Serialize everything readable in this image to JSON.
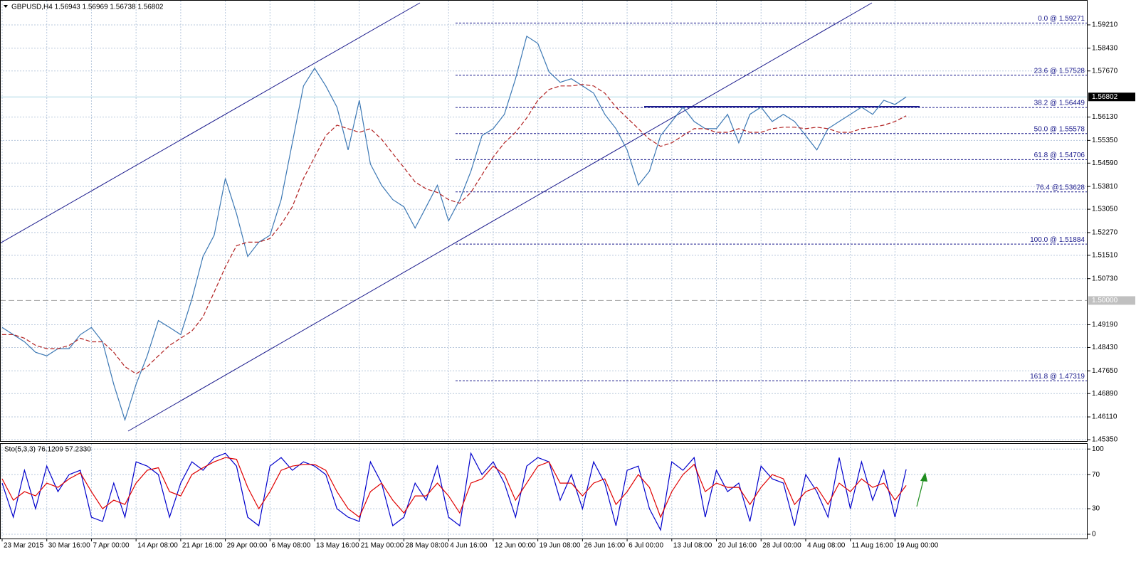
{
  "chart_data": [
    {
      "type": "line",
      "title": "GBPUSD,H4  1.56943 1.56969 1.56738 1.56802",
      "ylim": [
        1.45303,
        1.60017
      ],
      "grid": true,
      "yticks": [
        {
          "value": 1.5921,
          "label": "1.59210"
        },
        {
          "value": 1.5843,
          "label": "1.58430"
        },
        {
          "value": 1.5767,
          "label": "1.57670"
        },
        {
          "value": 1.5613,
          "label": "1.56130"
        },
        {
          "value": 1.5535,
          "label": "1.55350"
        },
        {
          "value": 1.5459,
          "label": "1.54590"
        },
        {
          "value": 1.5381,
          "label": "1.53810"
        },
        {
          "value": 1.5305,
          "label": "1.53050"
        },
        {
          "value": 1.5227,
          "label": "1.52270"
        },
        {
          "value": 1.5151,
          "label": "1.51510"
        },
        {
          "value": 1.5073,
          "label": "1.50730"
        },
        {
          "value": 1.4919,
          "label": "1.49190"
        },
        {
          "value": 1.4843,
          "label": "1.48430"
        },
        {
          "value": 1.4765,
          "label": "1.47650"
        },
        {
          "value": 1.4689,
          "label": "1.46890"
        },
        {
          "value": 1.4611,
          "label": "1.46110"
        },
        {
          "value": 1.4535,
          "label": "1.45350"
        }
      ],
      "level_line": {
        "value": 1.5,
        "label": "1.50000"
      },
      "last_price": {
        "value": 1.56802,
        "label": "1.56802"
      },
      "fib_color": "#1a1a8c",
      "fib_levels": [
        {
          "value": 1.59271,
          "label": "0.0 @ 1.59271"
        },
        {
          "value": 1.57528,
          "label": "23.6 @ 1.57528"
        },
        {
          "value": 1.56449,
          "label": "38.2 @ 1.56449"
        },
        {
          "value": 1.55578,
          "label": "50.0 @ 1.55578"
        },
        {
          "value": 1.54706,
          "label": "61.8 @ 1.54706"
        },
        {
          "value": 1.53628,
          "label": "76.4 @1.53628"
        },
        {
          "value": 1.51884,
          "label": "100.0 @ 1.51884"
        },
        {
          "value": 1.47319,
          "label": "161.8 @ 1.47319"
        }
      ],
      "series": [
        {
          "color": "#3c78b4",
          "dashed": false,
          "values": [
            1.491,
            1.4886,
            1.4862,
            1.4827,
            1.4815,
            1.4839,
            1.4839,
            1.4886,
            1.491,
            1.4862,
            1.472,
            1.4601,
            1.472,
            1.4815,
            1.4933,
            1.491,
            1.4886,
            1.5005,
            1.5147,
            1.5218,
            1.5408,
            1.529,
            1.5147,
            1.5195,
            1.5218,
            1.5337,
            1.5527,
            1.5717,
            1.5776,
            1.5717,
            1.5646,
            1.5503,
            1.5669,
            1.5456,
            1.5385,
            1.5337,
            1.5313,
            1.5242,
            1.5313,
            1.5385,
            1.5266,
            1.5337,
            1.5432,
            1.5551,
            1.5574,
            1.5622,
            1.5741,
            1.5883,
            1.5859,
            1.5764,
            1.5729,
            1.5741,
            1.5717,
            1.5693,
            1.5622,
            1.5574,
            1.5503,
            1.5385,
            1.5432,
            1.5551,
            1.5598,
            1.5646,
            1.5598,
            1.5574,
            1.5574,
            1.5622,
            1.5527,
            1.5622,
            1.5646,
            1.5598,
            1.5622,
            1.5598,
            1.5551,
            1.5503,
            1.5574,
            1.5598,
            1.5622,
            1.5646,
            1.5622,
            1.5669,
            1.5655,
            1.56802
          ]
        },
        {
          "color": "#b22222",
          "dashed": true,
          "values": [
            1.4886,
            1.4886,
            1.4874,
            1.485,
            1.4839,
            1.4839,
            1.485,
            1.4874,
            1.4862,
            1.4862,
            1.4827,
            1.4779,
            1.4755,
            1.4779,
            1.4815,
            1.485,
            1.4874,
            1.4898,
            1.4945,
            1.5028,
            1.5112,
            1.5183,
            1.5195,
            1.5195,
            1.5207,
            1.5254,
            1.5313,
            1.5408,
            1.5479,
            1.5551,
            1.5586,
            1.5574,
            1.5562,
            1.5574,
            1.5539,
            1.5491,
            1.5444,
            1.5396,
            1.5373,
            1.5361,
            1.5337,
            1.5325,
            1.5361,
            1.542,
            1.5479,
            1.5527,
            1.5562,
            1.561,
            1.5669,
            1.5705,
            1.5717,
            1.5717,
            1.5722,
            1.5717,
            1.5693,
            1.5646,
            1.561,
            1.5574,
            1.5539,
            1.5515,
            1.5527,
            1.5551,
            1.5574,
            1.5574,
            1.5562,
            1.5562,
            1.5574,
            1.5562,
            1.5562,
            1.5574,
            1.5579,
            1.5579,
            1.5574,
            1.5579,
            1.5574,
            1.5562,
            1.5562,
            1.5574,
            1.5579,
            1.5586,
            1.5598,
            1.5617
          ]
        }
      ]
    },
    {
      "type": "line",
      "title": "Sto(5,3,3) 76.1209 57.2330",
      "ylim": [
        -5,
        106
      ],
      "yticks": [
        100,
        70,
        30,
        0
      ],
      "grid": true,
      "categories": [
        "23 Mar 2015",
        null,
        null,
        null,
        "30 Mar 16:00",
        null,
        null,
        null,
        "7 Apr 00:00",
        null,
        null,
        null,
        "14 Apr 08:00",
        null,
        null,
        null,
        "21 Apr 16:00",
        null,
        null,
        null,
        "29 Apr 00:00",
        null,
        null,
        null,
        "6 May 08:00",
        null,
        null,
        null,
        "13 May 16:00",
        null,
        null,
        null,
        "21 May 00:00",
        null,
        null,
        null,
        "28 May 08:00",
        null,
        null,
        null,
        "4 Jun 16:00",
        null,
        null,
        null,
        "12 Jun 00:00",
        null,
        null,
        null,
        "19 Jun 08:00",
        null,
        null,
        null,
        "26 Jun 16:00",
        null,
        null,
        null,
        "6 Jul 00:00",
        null,
        null,
        null,
        "13 Jul 08:00",
        null,
        null,
        null,
        "20 Jul 16:00",
        null,
        null,
        null,
        "28 Jul 00:00",
        null,
        null,
        null,
        "4 Aug 08:00",
        null,
        null,
        null,
        "11 Aug 16:00",
        null,
        null,
        null,
        "19 Aug 00:00",
        null
      ],
      "series": [
        {
          "color": "#0000cc",
          "dashed": false,
          "values": [
            60,
            20,
            75,
            30,
            80,
            50,
            70,
            75,
            20,
            15,
            60,
            20,
            85,
            80,
            70,
            20,
            60,
            85,
            75,
            90,
            95,
            80,
            20,
            10,
            80,
            90,
            75,
            85,
            80,
            70,
            30,
            20,
            15,
            85,
            60,
            10,
            20,
            60,
            40,
            80,
            20,
            10,
            95,
            70,
            85,
            60,
            20,
            80,
            90,
            85,
            40,
            70,
            30,
            85,
            60,
            10,
            75,
            80,
            30,
            5,
            85,
            75,
            90,
            20,
            75,
            50,
            60,
            15,
            80,
            65,
            60,
            10,
            70,
            50,
            20,
            90,
            30,
            85,
            40,
            75,
            20,
            76.1209
          ]
        },
        {
          "color": "#e00000",
          "dashed": false,
          "values": [
            65,
            40,
            50,
            45,
            60,
            55,
            65,
            72,
            50,
            30,
            40,
            35,
            60,
            75,
            78,
            50,
            45,
            70,
            78,
            85,
            90,
            88,
            55,
            30,
            50,
            75,
            80,
            82,
            82,
            75,
            50,
            30,
            20,
            50,
            60,
            40,
            25,
            45,
            45,
            60,
            45,
            25,
            60,
            65,
            80,
            70,
            40,
            60,
            80,
            85,
            60,
            60,
            45,
            60,
            65,
            35,
            50,
            70,
            55,
            20,
            50,
            70,
            82,
            50,
            60,
            55,
            55,
            35,
            55,
            70,
            65,
            35,
            50,
            55,
            35,
            60,
            50,
            65,
            55,
            60,
            40,
            57.233
          ]
        }
      ]
    }
  ]
}
